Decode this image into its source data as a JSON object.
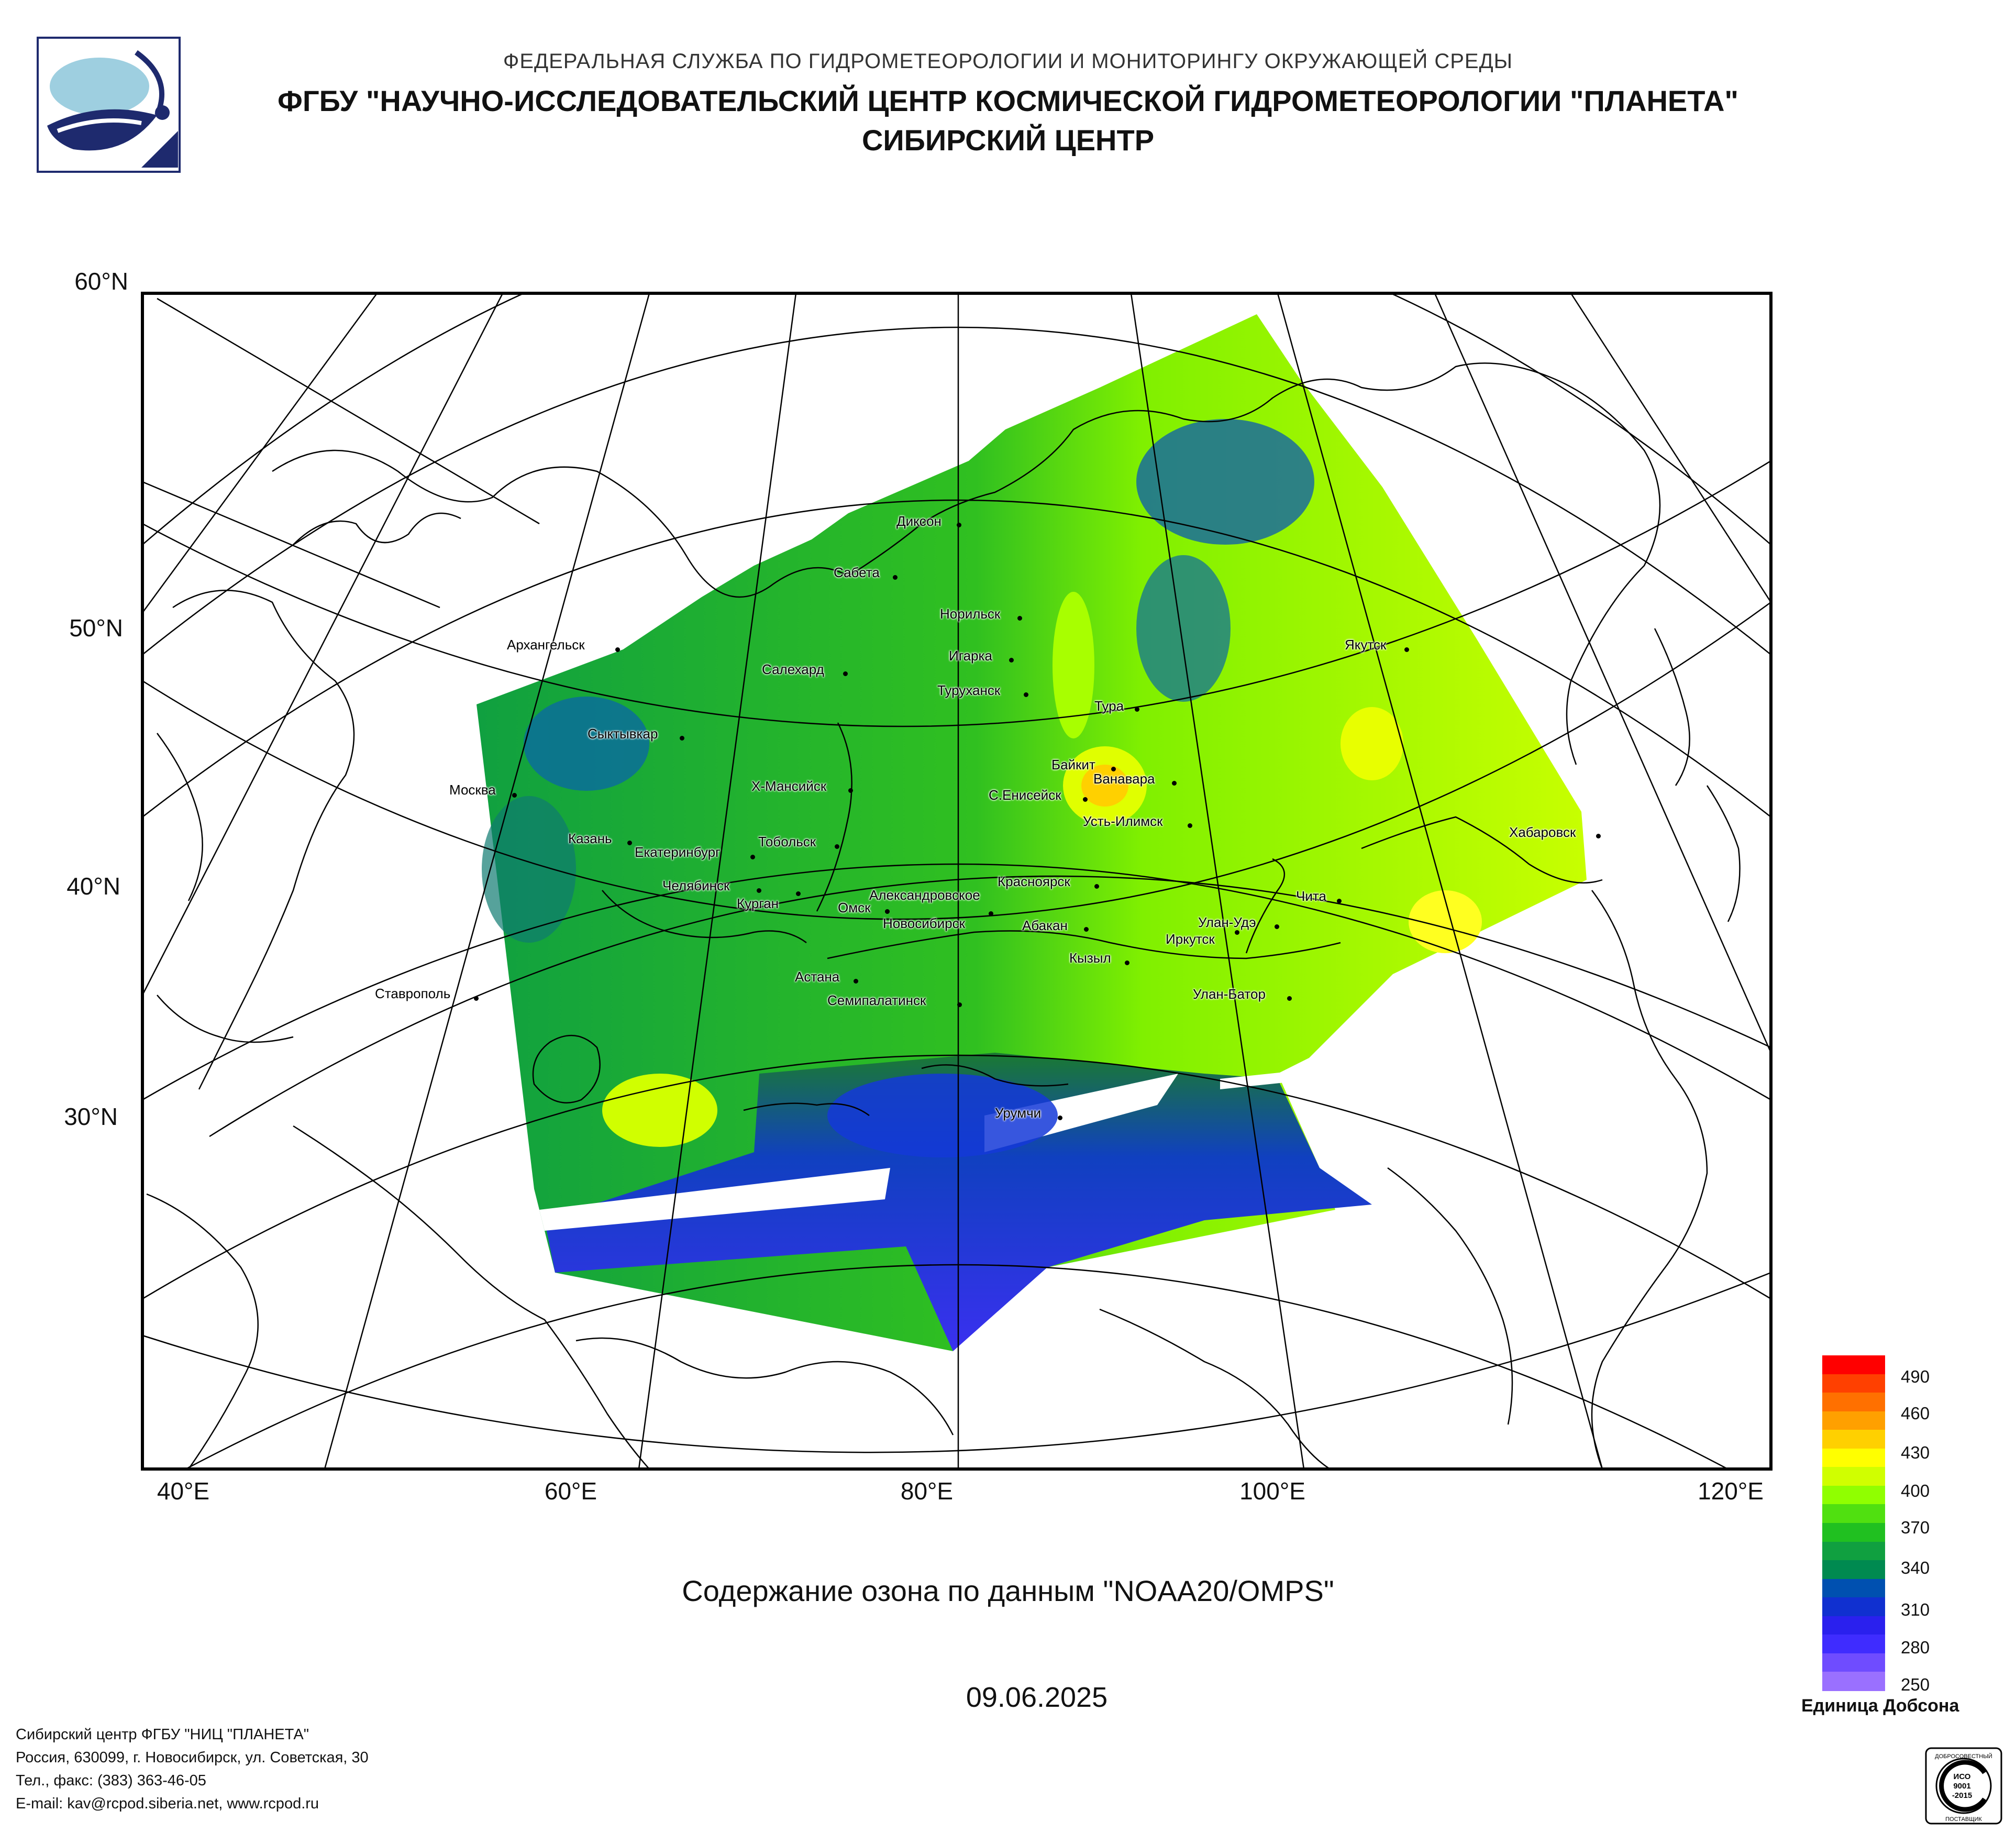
{
  "header": {
    "line1": "ФЕДЕРАЛЬНАЯ СЛУЖБА ПО ГИДРОМЕТЕОРОЛОГИИ И МОНИТОРИНГУ ОКРУЖАЮЩЕЙ СРЕДЫ",
    "line2": "ФГБУ \"НАУЧНО-ИССЛЕДОВАТЕЛЬСКИЙ ЦЕНТР КОСМИЧЕСКОЙ ГИДРОМЕТЕОРОЛОГИИ \"ПЛАНЕТА\"",
    "line3": "СИБИРСКИЙ ЦЕНТР"
  },
  "map": {
    "latitude_labels": [
      "60°N",
      "50°N",
      "40°N",
      "30°N"
    ],
    "longitude_labels": [
      "40°E",
      "60°E",
      "80°E",
      "100°E",
      "120°E"
    ],
    "cities": [
      {
        "name": "Диксон"
      },
      {
        "name": "Сабета"
      },
      {
        "name": "Норильск"
      },
      {
        "name": "Игарка"
      },
      {
        "name": "Архангельск"
      },
      {
        "name": "Салехард"
      },
      {
        "name": "Туруханск"
      },
      {
        "name": "Якутск"
      },
      {
        "name": "Тура"
      },
      {
        "name": "Сыктывкар"
      },
      {
        "name": "Байкит"
      },
      {
        "name": "Ванавара"
      },
      {
        "name": "Москва"
      },
      {
        "name": "Х-Мансийск"
      },
      {
        "name": "С.Енисейск"
      },
      {
        "name": "Усть-Илимск"
      },
      {
        "name": "Казань"
      },
      {
        "name": "Тобольск"
      },
      {
        "name": "Хабаровск"
      },
      {
        "name": "Екатеринбург"
      },
      {
        "name": "Красноярск"
      },
      {
        "name": "Челябинск"
      },
      {
        "name": "Курган"
      },
      {
        "name": "Александровское"
      },
      {
        "name": "Чита"
      },
      {
        "name": "Омск"
      },
      {
        "name": "Улан-Удэ"
      },
      {
        "name": "Новосибирск"
      },
      {
        "name": "Абакан"
      },
      {
        "name": "Иркутск"
      },
      {
        "name": "Кызыл"
      },
      {
        "name": "Астана"
      },
      {
        "name": "Ставрополь"
      },
      {
        "name": "Семипалатинск"
      },
      {
        "name": "Улан-Батор"
      },
      {
        "name": "Урумчи"
      }
    ]
  },
  "caption": "Содержание озона по данным \"NOAA20/OMPS\"",
  "date": "09.06.2025",
  "legend": {
    "title": "Единица Добсона",
    "ticks": [
      "490",
      "460",
      "430",
      "400",
      "370",
      "340",
      "310",
      "280",
      "250"
    ],
    "min": 250,
    "max": 490,
    "colors": [
      "#9a70ff",
      "#6f4cff",
      "#3f2cff",
      "#2a20ee",
      "#1030d0",
      "#0050b0",
      "#008a50",
      "#10a040",
      "#20c020",
      "#50e010",
      "#90ff00",
      "#d0ff00",
      "#ffff00",
      "#ffd000",
      "#ffa000",
      "#ff7000",
      "#ff4000",
      "#ff0000"
    ]
  },
  "footer": {
    "line1": "Сибирский центр ФГБУ \"НИЦ \"ПЛАНЕТА\"",
    "line2": "Россия, 630099, г. Новосибирск, ул. Советская, 30",
    "line3": "Тел., факс: (383) 363-46-05",
    "line4": "E-mail: kav@rcpod.siberia.net, www.rcpod.ru"
  },
  "iso_badge": {
    "top": "ДОБРОСОВЕСТНЫЙ",
    "l1": "ИСО",
    "l2": "9001",
    "l3": "-2015",
    "bottom": "ПОСТАВЩИК"
  }
}
